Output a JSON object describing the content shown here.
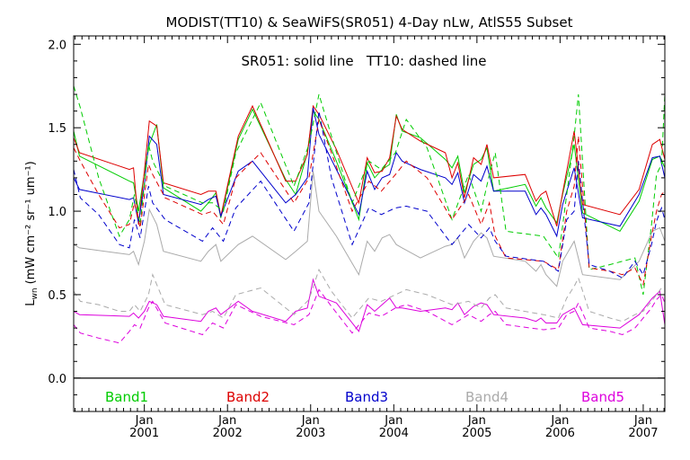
{
  "chart_data": {
    "type": "line",
    "title": "MODIST(TT10) & SeaWiFS(SR051) 4-Day nLw, AtlS55 Subset",
    "subtitle": "SR051: solid line   TT10: dashed line",
    "ylabel_main": "L",
    "ylabel_sub": "wn",
    "ylabel_units": "(mW cm⁻² sr⁻¹ um⁻¹)",
    "xlim": [
      2000.15,
      2007.26
    ],
    "ylim": [
      -0.2,
      2.05
    ],
    "yticks": [
      0.0,
      0.5,
      1.0,
      1.5,
      2.0
    ],
    "ytick_labels": [
      "0.0",
      "0.5",
      "1.0",
      "1.5",
      "2.0"
    ],
    "xticks": [
      {
        "x": 2001.0,
        "month": "Jan",
        "year": "2001"
      },
      {
        "x": 2002.0,
        "month": "Jan",
        "year": "2002"
      },
      {
        "x": 2003.0,
        "month": "Jan",
        "year": "2003"
      },
      {
        "x": 2004.0,
        "month": "Jan",
        "year": "2004"
      },
      {
        "x": 2005.0,
        "month": "Jan",
        "year": "2005"
      },
      {
        "x": 2006.0,
        "month": "Jan",
        "year": "2006"
      },
      {
        "x": 2007.0,
        "month": "Jan",
        "year": "2007"
      }
    ],
    "legend": [
      {
        "label": "Band1",
        "color": "#00cc00"
      },
      {
        "label": "Band2",
        "color": "#dd0000"
      },
      {
        "label": "Band3",
        "color": "#0000cc"
      },
      {
        "label": "Band4",
        "color": "#aaaaaa"
      },
      {
        "label": "Band5",
        "color": "#dd00dd"
      }
    ],
    "series": [
      {
        "name": "Band1",
        "instrument": "SR051",
        "style": "solid",
        "color": "#00cc00",
        "x": [
          2000.15,
          2000.22,
          2000.82,
          2000.87,
          2000.93,
          2001.0,
          2001.06,
          2001.15,
          2001.23,
          2001.68,
          2001.77,
          2001.86,
          2001.92,
          2002.13,
          2002.3,
          2002.7,
          2002.82,
          2002.96,
          2003.03,
          2003.1,
          2003.31,
          2003.58,
          2003.68,
          2003.77,
          2003.86,
          2003.95,
          2004.03,
          2004.1,
          2004.32,
          2004.62,
          2004.7,
          2004.77,
          2004.85,
          2004.96,
          2005.05,
          2005.12,
          2005.2,
          2005.58,
          2005.71,
          2005.77,
          2005.83,
          2005.96,
          2006.03,
          2006.17,
          2006.27,
          2006.72,
          2006.95,
          2007.11,
          2007.2,
          2007.26
        ],
        "y": [
          1.48,
          1.33,
          1.18,
          1.17,
          1.0,
          1.23,
          1.4,
          1.52,
          1.14,
          1.0,
          1.05,
          1.11,
          0.96,
          1.43,
          1.61,
          1.19,
          1.1,
          1.35,
          1.6,
          1.55,
          1.3,
          0.95,
          1.29,
          1.2,
          1.25,
          1.28,
          1.58,
          1.48,
          1.44,
          1.31,
          1.26,
          1.33,
          1.11,
          1.28,
          1.31,
          1.38,
          1.12,
          1.16,
          1.03,
          1.08,
          1.02,
          0.93,
          1.1,
          1.4,
          0.99,
          0.88,
          1.06,
          1.31,
          1.33,
          1.26
        ]
      },
      {
        "name": "Band2",
        "instrument": "SR051",
        "style": "solid",
        "color": "#dd0000",
        "x": [
          2000.15,
          2000.22,
          2000.82,
          2000.87,
          2000.93,
          2001.0,
          2001.06,
          2001.15,
          2001.23,
          2001.68,
          2001.77,
          2001.86,
          2001.92,
          2002.13,
          2002.3,
          2002.7,
          2002.82,
          2002.96,
          2003.03,
          2003.1,
          2003.31,
          2003.58,
          2003.68,
          2003.77,
          2003.86,
          2003.95,
          2004.03,
          2004.1,
          2004.32,
          2004.62,
          2004.7,
          2004.77,
          2004.85,
          2004.96,
          2005.05,
          2005.12,
          2005.2,
          2005.58,
          2005.71,
          2005.77,
          2005.83,
          2005.96,
          2006.03,
          2006.17,
          2006.27,
          2006.72,
          2006.95,
          2007.11,
          2007.2,
          2007.26
        ],
        "y": [
          1.44,
          1.35,
          1.25,
          1.26,
          0.92,
          1.24,
          1.54,
          1.51,
          1.17,
          1.1,
          1.12,
          1.12,
          0.97,
          1.45,
          1.63,
          1.18,
          1.18,
          1.34,
          1.63,
          1.58,
          1.37,
          1.05,
          1.32,
          1.23,
          1.24,
          1.32,
          1.57,
          1.49,
          1.42,
          1.35,
          1.2,
          1.29,
          1.08,
          1.32,
          1.28,
          1.4,
          1.2,
          1.22,
          1.06,
          1.1,
          1.12,
          0.91,
          1.11,
          1.48,
          1.04,
          0.98,
          1.13,
          1.4,
          1.43,
          1.31
        ]
      },
      {
        "name": "Band3",
        "instrument": "SR051",
        "style": "solid",
        "color": "#0000cc",
        "x": [
          2000.15,
          2000.22,
          2000.82,
          2000.87,
          2000.93,
          2001.0,
          2001.06,
          2001.15,
          2001.23,
          2001.68,
          2001.77,
          2001.86,
          2001.92,
          2002.13,
          2002.3,
          2002.7,
          2002.82,
          2002.96,
          2003.03,
          2003.1,
          2003.31,
          2003.58,
          2003.68,
          2003.77,
          2003.86,
          2003.95,
          2004.03,
          2004.1,
          2004.32,
          2004.62,
          2004.7,
          2004.77,
          2004.85,
          2004.96,
          2005.05,
          2005.12,
          2005.2,
          2005.58,
          2005.71,
          2005.77,
          2005.83,
          2005.96,
          2006.03,
          2006.17,
          2006.27,
          2006.72,
          2006.95,
          2007.11,
          2007.2,
          2007.26
        ],
        "y": [
          1.2,
          1.13,
          1.07,
          1.08,
          0.93,
          1.16,
          1.45,
          1.4,
          1.1,
          1.04,
          1.07,
          1.09,
          0.97,
          1.24,
          1.3,
          1.05,
          1.1,
          1.2,
          1.62,
          1.46,
          1.25,
          0.98,
          1.24,
          1.13,
          1.2,
          1.22,
          1.35,
          1.3,
          1.25,
          1.2,
          1.16,
          1.23,
          1.05,
          1.22,
          1.18,
          1.27,
          1.12,
          1.12,
          0.98,
          1.02,
          0.98,
          0.85,
          1.04,
          1.26,
          0.96,
          0.91,
          1.1,
          1.32,
          1.33,
          1.2
        ]
      },
      {
        "name": "Band4",
        "instrument": "SR051",
        "style": "solid",
        "color": "#aaaaaa",
        "x": [
          2000.15,
          2000.22,
          2000.82,
          2000.87,
          2000.93,
          2001.0,
          2001.06,
          2001.15,
          2001.23,
          2001.68,
          2001.77,
          2001.86,
          2001.92,
          2002.13,
          2002.3,
          2002.7,
          2002.82,
          2002.96,
          2003.03,
          2003.1,
          2003.31,
          2003.58,
          2003.68,
          2003.77,
          2003.86,
          2003.95,
          2004.03,
          2004.1,
          2004.32,
          2004.62,
          2004.7,
          2004.77,
          2004.85,
          2004.96,
          2005.05,
          2005.12,
          2005.2,
          2005.58,
          2005.71,
          2005.77,
          2005.83,
          2005.96,
          2006.03,
          2006.17,
          2006.27,
          2006.72,
          2006.95,
          2007.11,
          2007.2,
          2007.26
        ],
        "y": [
          0.8,
          0.78,
          0.74,
          0.76,
          0.68,
          0.82,
          1.01,
          0.92,
          0.76,
          0.7,
          0.76,
          0.8,
          0.7,
          0.8,
          0.85,
          0.71,
          0.76,
          0.82,
          1.24,
          1.0,
          0.85,
          0.62,
          0.82,
          0.76,
          0.84,
          0.86,
          0.8,
          0.78,
          0.72,
          0.79,
          0.8,
          0.84,
          0.72,
          0.82,
          0.87,
          0.84,
          0.73,
          0.7,
          0.64,
          0.68,
          0.62,
          0.55,
          0.7,
          0.82,
          0.62,
          0.59,
          0.7,
          0.88,
          0.9,
          0.82
        ]
      },
      {
        "name": "Band5",
        "instrument": "SR051",
        "style": "solid",
        "color": "#dd00dd",
        "x": [
          2000.15,
          2000.22,
          2000.82,
          2000.87,
          2000.93,
          2001.0,
          2001.06,
          2001.15,
          2001.23,
          2001.68,
          2001.77,
          2001.86,
          2001.92,
          2002.13,
          2002.3,
          2002.7,
          2002.82,
          2002.96,
          2003.03,
          2003.1,
          2003.31,
          2003.58,
          2003.68,
          2003.77,
          2003.86,
          2003.95,
          2004.03,
          2004.1,
          2004.32,
          2004.62,
          2004.7,
          2004.77,
          2004.85,
          2004.96,
          2005.05,
          2005.12,
          2005.2,
          2005.58,
          2005.71,
          2005.77,
          2005.83,
          2005.96,
          2006.03,
          2006.17,
          2006.27,
          2006.72,
          2006.95,
          2007.11,
          2007.2,
          2007.26
        ],
        "y": [
          0.4,
          0.38,
          0.37,
          0.39,
          0.36,
          0.4,
          0.46,
          0.44,
          0.37,
          0.34,
          0.4,
          0.42,
          0.38,
          0.46,
          0.4,
          0.34,
          0.4,
          0.42,
          0.59,
          0.49,
          0.45,
          0.28,
          0.44,
          0.4,
          0.44,
          0.48,
          0.42,
          0.42,
          0.4,
          0.42,
          0.41,
          0.45,
          0.38,
          0.43,
          0.45,
          0.44,
          0.38,
          0.36,
          0.34,
          0.36,
          0.33,
          0.33,
          0.38,
          0.42,
          0.32,
          0.3,
          0.38,
          0.48,
          0.52,
          0.32
        ]
      },
      {
        "name": "Band1",
        "instrument": "TT10",
        "style": "dashed",
        "color": "#00cc00",
        "x": [
          2000.15,
          2000.23,
          2000.45,
          2000.7,
          2000.82,
          2000.88,
          2000.95,
          2001.05,
          2001.1,
          2001.25,
          2001.7,
          2001.82,
          2001.95,
          2002.1,
          2002.4,
          2002.8,
          2002.98,
          2003.1,
          2003.25,
          2003.5,
          2003.7,
          2003.85,
          2004.02,
          2004.15,
          2004.4,
          2004.7,
          2004.9,
          2005.05,
          2005.15,
          2005.22,
          2005.35,
          2005.8,
          2005.98,
          2006.08,
          2006.17,
          2006.22,
          2006.35,
          2006.6,
          2006.75,
          2006.9,
          2007.0,
          2007.1,
          2007.16,
          2007.22,
          2007.26
        ],
        "y": [
          1.75,
          1.62,
          1.2,
          0.85,
          0.95,
          1.1,
          0.92,
          1.4,
          1.3,
          1.15,
          1.05,
          1.05,
          1.0,
          1.35,
          1.65,
          1.15,
          1.4,
          1.7,
          1.45,
          1.05,
          1.3,
          1.25,
          1.35,
          1.55,
          1.38,
          0.95,
          1.22,
          1.0,
          1.22,
          1.35,
          0.88,
          0.85,
          0.72,
          1.1,
          1.45,
          1.7,
          0.65,
          0.68,
          0.7,
          0.72,
          0.5,
          0.92,
          1.22,
          1.28,
          1.7
        ]
      },
      {
        "name": "Band2",
        "instrument": "TT10",
        "style": "dashed",
        "color": "#dd0000",
        "x": [
          2000.15,
          2000.23,
          2000.45,
          2000.7,
          2000.82,
          2000.88,
          2000.95,
          2001.05,
          2001.1,
          2001.25,
          2001.7,
          2001.82,
          2001.95,
          2002.1,
          2002.4,
          2002.8,
          2002.98,
          2003.1,
          2003.25,
          2003.5,
          2003.7,
          2003.85,
          2004.02,
          2004.15,
          2004.4,
          2004.7,
          2004.9,
          2005.05,
          2005.15,
          2005.22,
          2005.35,
          2005.8,
          2005.98,
          2006.08,
          2006.17,
          2006.22,
          2006.35,
          2006.6,
          2006.75,
          2006.9,
          2007.0,
          2007.1,
          2007.16,
          2007.22,
          2007.26
        ],
        "y": [
          1.38,
          1.3,
          1.1,
          0.9,
          0.92,
          1.05,
          0.9,
          1.28,
          1.22,
          1.08,
          0.98,
          1.0,
          0.92,
          1.2,
          1.35,
          1.05,
          1.2,
          1.55,
          1.35,
          1.0,
          1.18,
          1.12,
          1.22,
          1.3,
          1.2,
          0.95,
          1.1,
          0.92,
          1.05,
          0.85,
          0.72,
          0.7,
          0.65,
          1.0,
          1.15,
          1.45,
          0.66,
          0.64,
          0.62,
          0.66,
          0.56,
          0.85,
          1.0,
          1.1,
          1.12
        ]
      },
      {
        "name": "Band3",
        "instrument": "TT10",
        "style": "dashed",
        "color": "#0000cc",
        "x": [
          2000.15,
          2000.23,
          2000.45,
          2000.7,
          2000.82,
          2000.88,
          2000.95,
          2001.05,
          2001.1,
          2001.25,
          2001.7,
          2001.82,
          2001.95,
          2002.1,
          2002.4,
          2002.8,
          2002.98,
          2003.1,
          2003.25,
          2003.5,
          2003.7,
          2003.85,
          2004.02,
          2004.15,
          2004.4,
          2004.7,
          2004.9,
          2005.05,
          2005.15,
          2005.22,
          2005.35,
          2005.8,
          2005.98,
          2006.08,
          2006.17,
          2006.22,
          2006.35,
          2006.6,
          2006.75,
          2006.9,
          2007.0,
          2007.1,
          2007.16,
          2007.22,
          2007.26
        ],
        "y": [
          1.25,
          1.08,
          0.98,
          0.8,
          0.78,
          0.95,
          0.84,
          1.15,
          1.05,
          0.95,
          0.82,
          0.9,
          0.82,
          1.02,
          1.18,
          0.88,
          1.05,
          1.6,
          1.2,
          0.8,
          1.02,
          0.98,
          1.02,
          1.03,
          1.0,
          0.8,
          0.92,
          0.84,
          0.9,
          0.82,
          0.73,
          0.7,
          0.64,
          0.95,
          1.0,
          1.3,
          0.68,
          0.64,
          0.6,
          0.7,
          0.62,
          0.8,
          0.94,
          1.02,
          0.95
        ]
      },
      {
        "name": "Band4",
        "instrument": "TT10",
        "style": "dashed",
        "color": "#aaaaaa",
        "x": [
          2000.15,
          2000.23,
          2000.45,
          2000.7,
          2000.82,
          2000.88,
          2000.95,
          2001.05,
          2001.1,
          2001.25,
          2001.7,
          2001.82,
          2001.95,
          2002.1,
          2002.4,
          2002.8,
          2002.98,
          2003.1,
          2003.25,
          2003.5,
          2003.7,
          2003.85,
          2004.02,
          2004.15,
          2004.4,
          2004.7,
          2004.9,
          2005.05,
          2005.15,
          2005.22,
          2005.35,
          2005.8,
          2005.98,
          2006.08,
          2006.17,
          2006.22,
          2006.35,
          2006.6,
          2006.75,
          2006.9,
          2007.0,
          2007.1,
          2007.16,
          2007.22,
          2007.26
        ],
        "y": [
          0.52,
          0.46,
          0.44,
          0.4,
          0.4,
          0.44,
          0.4,
          0.5,
          0.62,
          0.44,
          0.38,
          0.4,
          0.36,
          0.5,
          0.54,
          0.38,
          0.47,
          0.65,
          0.52,
          0.36,
          0.48,
          0.46,
          0.5,
          0.53,
          0.5,
          0.44,
          0.46,
          0.42,
          0.48,
          0.5,
          0.42,
          0.38,
          0.36,
          0.48,
          0.55,
          0.6,
          0.4,
          0.36,
          0.34,
          0.38,
          0.4,
          0.46,
          0.5,
          0.54,
          0.55
        ]
      },
      {
        "name": "Band5",
        "instrument": "TT10",
        "style": "dashed",
        "color": "#dd00dd",
        "x": [
          2000.15,
          2000.23,
          2000.45,
          2000.7,
          2000.82,
          2000.88,
          2000.95,
          2001.05,
          2001.1,
          2001.25,
          2001.7,
          2001.82,
          2001.95,
          2002.1,
          2002.4,
          2002.8,
          2002.98,
          2003.1,
          2003.25,
          2003.5,
          2003.7,
          2003.85,
          2004.02,
          2004.15,
          2004.4,
          2004.7,
          2004.9,
          2005.05,
          2005.15,
          2005.22,
          2005.35,
          2005.8,
          2005.98,
          2006.08,
          2006.17,
          2006.22,
          2006.35,
          2006.6,
          2006.75,
          2006.9,
          2007.0,
          2007.1,
          2007.16,
          2007.22,
          2007.26
        ],
        "y": [
          0.32,
          0.27,
          0.24,
          0.21,
          0.28,
          0.32,
          0.3,
          0.42,
          0.46,
          0.33,
          0.26,
          0.33,
          0.3,
          0.44,
          0.37,
          0.32,
          0.38,
          0.53,
          0.43,
          0.27,
          0.39,
          0.37,
          0.42,
          0.44,
          0.4,
          0.32,
          0.38,
          0.34,
          0.38,
          0.4,
          0.32,
          0.29,
          0.3,
          0.38,
          0.4,
          0.45,
          0.3,
          0.28,
          0.26,
          0.3,
          0.36,
          0.42,
          0.47,
          0.5,
          0.45
        ]
      }
    ]
  }
}
